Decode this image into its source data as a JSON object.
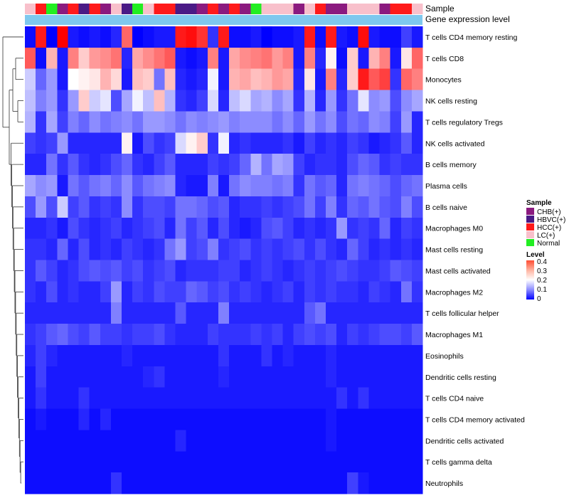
{
  "chart_data": {
    "type": "heatmap",
    "annotation_titles": {
      "sample": "Sample",
      "level": "Gene expression level"
    },
    "legend": {
      "sample_title": "Sample",
      "sample_entries": [
        {
          "label": "CHB(+)",
          "color": "#8b1a7f"
        },
        {
          "label": "HBVC(+)",
          "color": "#4a1a86"
        },
        {
          "label": "HCC(+)",
          "color": "#ff1a1a"
        },
        {
          "label": "LC(+)",
          "color": "#f8c0cb"
        },
        {
          "label": "Normal",
          "color": "#22ee22"
        }
      ],
      "level_title": "Level",
      "level_ticks": [
        "0.4",
        "0.3",
        "0.2",
        "0.1",
        "0"
      ],
      "level_range": [
        0,
        0.4
      ]
    },
    "color_scale": {
      "low": "#0000ff",
      "mid": "#ffffff",
      "high": "#ff0000",
      "min": 0,
      "max": 0.4,
      "midpoint": 0.2
    },
    "level_bar_color": "#7ec8ee",
    "sample_groups": [
      "LC(+)",
      "HCC(+)",
      "Normal",
      "CHB(+)",
      "HCC(+)",
      "HBVC(+)",
      "HCC(+)",
      "CHB(+)",
      "LC(+)",
      "HBVC(+)",
      "Normal",
      "LC(+)",
      "HCC(+)",
      "HCC(+)",
      "HBVC(+)",
      "HBVC(+)",
      "CHB(+)",
      "HCC(+)",
      "CHB(+)",
      "HCC(+)",
      "CHB(+)",
      "Normal",
      "LC(+)",
      "LC(+)",
      "LC(+)",
      "CHB(+)",
      "LC(+)",
      "HCC(+)",
      "CHB(+)",
      "CHB(+)",
      "LC(+)",
      "LC(+)",
      "LC(+)",
      "CHB(+)",
      "HCC(+)",
      "HCC(+)",
      "LC(+)"
    ],
    "rows": [
      "T cells CD4 memory resting",
      "T cells CD8",
      "Monocytes",
      "NK cells resting",
      "T cells regulatory  Tregs",
      "NK cells activated",
      "B cells memory",
      "Plasma cells",
      "B cells naive",
      "Macrophages M0",
      "Mast cells resting",
      "Mast cells activated",
      "Macrophages M2",
      "T cells follicular helper",
      "Macrophages M1",
      "Eosinophils",
      "Dendritic cells resting",
      "T cells CD4 naive",
      "T cells CD4 memory activated",
      "Dendritic cells activated",
      "T cells gamma delta",
      "Neutrophils"
    ],
    "values": [
      [
        0.01,
        0.38,
        0.0,
        0.4,
        0.02,
        0.01,
        0.02,
        0.01,
        0.03,
        0.32,
        0.0,
        0.01,
        0.02,
        0.02,
        0.38,
        0.39,
        0.36,
        0.04,
        0.38,
        0.01,
        0.01,
        0.02,
        0.0,
        0.01,
        0.01,
        0.02,
        0.38,
        0.01,
        0.38,
        0.02,
        0.01,
        0.39,
        0.02,
        0.01,
        0.01,
        0.05,
        0.02
      ],
      [
        0.33,
        0.01,
        0.26,
        0.02,
        0.3,
        0.24,
        0.28,
        0.29,
        0.31,
        0.03,
        0.27,
        0.29,
        0.31,
        0.33,
        0.02,
        0.01,
        0.02,
        0.3,
        0.02,
        0.27,
        0.29,
        0.3,
        0.31,
        0.28,
        0.3,
        0.02,
        0.3,
        0.03,
        0.21,
        0.01,
        0.24,
        0.02,
        0.26,
        0.3,
        0.02,
        0.22,
        0.32
      ],
      [
        0.16,
        0.08,
        0.12,
        0.02,
        0.2,
        0.21,
        0.22,
        0.26,
        0.23,
        0.02,
        0.25,
        0.24,
        0.09,
        0.25,
        0.03,
        0.02,
        0.03,
        0.19,
        0.02,
        0.26,
        0.27,
        0.25,
        0.26,
        0.28,
        0.27,
        0.03,
        0.22,
        0.02,
        0.3,
        0.03,
        0.24,
        0.38,
        0.33,
        0.35,
        0.04,
        0.32,
        0.3
      ],
      [
        0.15,
        0.1,
        0.12,
        0.04,
        0.12,
        0.24,
        0.16,
        0.18,
        0.06,
        0.13,
        0.19,
        0.15,
        0.25,
        0.14,
        0.04,
        0.03,
        0.05,
        0.17,
        0.03,
        0.15,
        0.17,
        0.13,
        0.14,
        0.11,
        0.13,
        0.04,
        0.14,
        0.03,
        0.12,
        0.04,
        0.09,
        0.18,
        0.11,
        0.12,
        0.06,
        0.11,
        0.13
      ],
      [
        0.14,
        0.04,
        0.13,
        0.05,
        0.1,
        0.08,
        0.11,
        0.09,
        0.1,
        0.11,
        0.09,
        0.12,
        0.12,
        0.11,
        0.09,
        0.11,
        0.1,
        0.11,
        0.12,
        0.1,
        0.11,
        0.11,
        0.11,
        0.09,
        0.11,
        0.08,
        0.12,
        0.09,
        0.11,
        0.06,
        0.09,
        0.08,
        0.11,
        0.1,
        0.05,
        0.12,
        0.03
      ],
      [
        0.05,
        0.04,
        0.05,
        0.12,
        0.03,
        0.03,
        0.03,
        0.03,
        0.03,
        0.21,
        0.02,
        0.06,
        0.04,
        0.05,
        0.17,
        0.21,
        0.24,
        0.04,
        0.19,
        0.03,
        0.04,
        0.03,
        0.03,
        0.03,
        0.04,
        0.02,
        0.05,
        0.03,
        0.04,
        0.03,
        0.05,
        0.04,
        0.02,
        0.03,
        0.04,
        0.07,
        0.03
      ],
      [
        0.03,
        0.03,
        0.09,
        0.04,
        0.07,
        0.04,
        0.03,
        0.04,
        0.06,
        0.08,
        0.04,
        0.03,
        0.05,
        0.07,
        0.03,
        0.03,
        0.03,
        0.05,
        0.04,
        0.05,
        0.08,
        0.14,
        0.09,
        0.13,
        0.12,
        0.05,
        0.03,
        0.04,
        0.04,
        0.03,
        0.06,
        0.08,
        0.07,
        0.04,
        0.05,
        0.04,
        0.04
      ],
      [
        0.13,
        0.11,
        0.12,
        0.02,
        0.09,
        0.07,
        0.09,
        0.1,
        0.08,
        0.11,
        0.07,
        0.09,
        0.1,
        0.11,
        0.03,
        0.02,
        0.02,
        0.1,
        0.02,
        0.09,
        0.11,
        0.1,
        0.1,
        0.09,
        0.1,
        0.04,
        0.09,
        0.07,
        0.08,
        0.03,
        0.09,
        0.1,
        0.09,
        0.08,
        0.06,
        0.08,
        0.09
      ],
      [
        0.06,
        0.12,
        0.06,
        0.16,
        0.05,
        0.07,
        0.04,
        0.05,
        0.04,
        0.11,
        0.04,
        0.06,
        0.06,
        0.05,
        0.09,
        0.09,
        0.08,
        0.06,
        0.07,
        0.03,
        0.04,
        0.04,
        0.05,
        0.04,
        0.05,
        0.06,
        0.09,
        0.05,
        0.1,
        0.04,
        0.08,
        0.07,
        0.09,
        0.07,
        0.06,
        0.1,
        0.06
      ],
      [
        0.03,
        0.03,
        0.04,
        0.02,
        0.06,
        0.04,
        0.03,
        0.04,
        0.05,
        0.03,
        0.04,
        0.05,
        0.06,
        0.03,
        0.09,
        0.05,
        0.07,
        0.03,
        0.06,
        0.03,
        0.02,
        0.03,
        0.06,
        0.07,
        0.05,
        0.03,
        0.04,
        0.03,
        0.04,
        0.12,
        0.04,
        0.05,
        0.04,
        0.08,
        0.03,
        0.05,
        0.04
      ],
      [
        0.04,
        0.04,
        0.03,
        0.08,
        0.03,
        0.06,
        0.03,
        0.04,
        0.03,
        0.05,
        0.04,
        0.03,
        0.04,
        0.09,
        0.12,
        0.05,
        0.06,
        0.1,
        0.04,
        0.05,
        0.06,
        0.04,
        0.05,
        0.04,
        0.05,
        0.06,
        0.04,
        0.06,
        0.04,
        0.03,
        0.08,
        0.05,
        0.03,
        0.04,
        0.03,
        0.04,
        0.03
      ],
      [
        0.04,
        0.07,
        0.05,
        0.03,
        0.04,
        0.06,
        0.07,
        0.06,
        0.07,
        0.05,
        0.06,
        0.04,
        0.05,
        0.06,
        0.03,
        0.04,
        0.04,
        0.04,
        0.05,
        0.05,
        0.03,
        0.04,
        0.05,
        0.04,
        0.03,
        0.04,
        0.05,
        0.04,
        0.05,
        0.06,
        0.05,
        0.04,
        0.04,
        0.05,
        0.07,
        0.06,
        0.05
      ],
      [
        0.04,
        0.03,
        0.06,
        0.03,
        0.04,
        0.03,
        0.03,
        0.05,
        0.12,
        0.03,
        0.05,
        0.04,
        0.06,
        0.05,
        0.05,
        0.08,
        0.07,
        0.05,
        0.06,
        0.04,
        0.05,
        0.04,
        0.03,
        0.04,
        0.05,
        0.03,
        0.05,
        0.04,
        0.05,
        0.04,
        0.04,
        0.03,
        0.05,
        0.04,
        0.03,
        0.09,
        0.04
      ],
      [
        0.03,
        0.03,
        0.03,
        0.03,
        0.03,
        0.03,
        0.03,
        0.03,
        0.1,
        0.03,
        0.03,
        0.03,
        0.03,
        0.03,
        0.07,
        0.03,
        0.03,
        0.03,
        0.1,
        0.03,
        0.03,
        0.03,
        0.03,
        0.03,
        0.03,
        0.03,
        0.07,
        0.09,
        0.03,
        0.03,
        0.03,
        0.03,
        0.03,
        0.03,
        0.03,
        0.03,
        0.03
      ],
      [
        0.04,
        0.05,
        0.07,
        0.08,
        0.06,
        0.05,
        0.07,
        0.05,
        0.05,
        0.04,
        0.05,
        0.05,
        0.06,
        0.04,
        0.03,
        0.03,
        0.03,
        0.05,
        0.04,
        0.04,
        0.04,
        0.05,
        0.04,
        0.05,
        0.03,
        0.05,
        0.06,
        0.05,
        0.06,
        0.03,
        0.05,
        0.04,
        0.05,
        0.06,
        0.06,
        0.05,
        0.07
      ],
      [
        0.03,
        0.05,
        0.03,
        0.02,
        0.02,
        0.02,
        0.02,
        0.02,
        0.02,
        0.03,
        0.02,
        0.02,
        0.02,
        0.02,
        0.02,
        0.02,
        0.02,
        0.02,
        0.04,
        0.02,
        0.02,
        0.02,
        0.04,
        0.02,
        0.03,
        0.02,
        0.02,
        0.02,
        0.03,
        0.02,
        0.02,
        0.02,
        0.02,
        0.02,
        0.02,
        0.02,
        0.02
      ],
      [
        0.02,
        0.05,
        0.02,
        0.02,
        0.02,
        0.02,
        0.02,
        0.02,
        0.02,
        0.02,
        0.02,
        0.03,
        0.04,
        0.02,
        0.02,
        0.02,
        0.02,
        0.02,
        0.03,
        0.02,
        0.02,
        0.02,
        0.02,
        0.02,
        0.02,
        0.02,
        0.02,
        0.02,
        0.03,
        0.02,
        0.02,
        0.02,
        0.02,
        0.02,
        0.02,
        0.02,
        0.02
      ],
      [
        0.02,
        0.04,
        0.02,
        0.02,
        0.02,
        0.04,
        0.02,
        0.02,
        0.02,
        0.02,
        0.02,
        0.02,
        0.02,
        0.02,
        0.02,
        0.02,
        0.02,
        0.02,
        0.02,
        0.02,
        0.02,
        0.02,
        0.02,
        0.02,
        0.02,
        0.02,
        0.02,
        0.02,
        0.02,
        0.04,
        0.02,
        0.04,
        0.02,
        0.02,
        0.02,
        0.02,
        0.02
      ],
      [
        0.01,
        0.02,
        0.01,
        0.01,
        0.01,
        0.03,
        0.01,
        0.03,
        0.01,
        0.01,
        0.01,
        0.01,
        0.01,
        0.01,
        0.01,
        0.01,
        0.01,
        0.01,
        0.01,
        0.01,
        0.01,
        0.01,
        0.01,
        0.01,
        0.01,
        0.01,
        0.01,
        0.01,
        0.02,
        0.01,
        0.01,
        0.01,
        0.01,
        0.01,
        0.01,
        0.01,
        0.01
      ],
      [
        0.01,
        0.01,
        0.01,
        0.01,
        0.01,
        0.01,
        0.01,
        0.01,
        0.01,
        0.01,
        0.01,
        0.01,
        0.01,
        0.01,
        0.03,
        0.01,
        0.01,
        0.01,
        0.01,
        0.01,
        0.01,
        0.01,
        0.01,
        0.01,
        0.01,
        0.01,
        0.01,
        0.01,
        0.02,
        0.01,
        0.01,
        0.01,
        0.01,
        0.01,
        0.01,
        0.01,
        0.01
      ],
      [
        0.01,
        0.01,
        0.01,
        0.01,
        0.01,
        0.01,
        0.01,
        0.01,
        0.01,
        0.01,
        0.01,
        0.01,
        0.01,
        0.01,
        0.01,
        0.01,
        0.01,
        0.01,
        0.01,
        0.01,
        0.01,
        0.01,
        0.01,
        0.01,
        0.01,
        0.01,
        0.01,
        0.01,
        0.01,
        0.01,
        0.01,
        0.01,
        0.01,
        0.01,
        0.01,
        0.01,
        0.01
      ],
      [
        0.01,
        0.01,
        0.01,
        0.01,
        0.01,
        0.01,
        0.01,
        0.01,
        0.04,
        0.01,
        0.01,
        0.01,
        0.01,
        0.01,
        0.01,
        0.01,
        0.01,
        0.01,
        0.01,
        0.01,
        0.01,
        0.01,
        0.01,
        0.01,
        0.01,
        0.01,
        0.01,
        0.01,
        0.01,
        0.01,
        0.05,
        0.02,
        0.01,
        0.01,
        0.01,
        0.01,
        0.01
      ]
    ]
  }
}
